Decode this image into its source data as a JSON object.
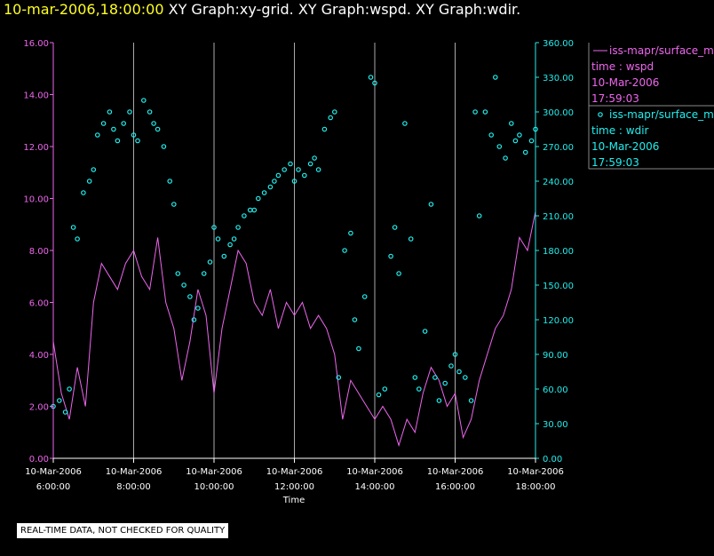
{
  "title": {
    "timestamp": "10-mar-2006,18:00:00",
    "graphs": "XY Graph:xy-grid.  XY Graph:wspd.  XY Graph:wdir."
  },
  "legend": {
    "wspd": {
      "label": "iss-mapr/surface_m",
      "time_label": "time : wspd",
      "date": "10-Mar-2006",
      "time": "17:59:03"
    },
    "wdir": {
      "label": "iss-mapr/surface_m",
      "time_label": "time : wdir",
      "date": "10-Mar-2006",
      "time": "17:59:03"
    }
  },
  "notice": "REAL-TIME DATA, NOT CHECKED FOR QUALITY",
  "colors": {
    "wspd": "#ee66ee",
    "wdir": "#22eeee",
    "grid": "#aaaaaa",
    "title_ts": "#ffff22"
  },
  "chart_data": {
    "type": "line",
    "xlabel": "Time",
    "xlim": [
      6.0,
      18.0
    ],
    "x_ticks": [
      {
        "x": 6,
        "date": "10-Mar-2006",
        "time": "6:00:00"
      },
      {
        "x": 8,
        "date": "10-Mar-2006",
        "time": "8:00:00"
      },
      {
        "x": 10,
        "date": "10-Mar-2006",
        "time": "10:00:00"
      },
      {
        "x": 12,
        "date": "10-Mar-2006",
        "time": "12:00:00"
      },
      {
        "x": 14,
        "date": "10-Mar-2006",
        "time": "14:00:00"
      },
      {
        "x": 16,
        "date": "10-Mar-2006",
        "time": "16:00:00"
      },
      {
        "x": 18,
        "date": "10-Mar-2006",
        "time": "18:00:00"
      }
    ],
    "y_left": {
      "lim": [
        0,
        16
      ],
      "ticks": [
        "0.00",
        "2.00",
        "4.00",
        "6.00",
        "8.00",
        "10.00",
        "12.00",
        "14.00",
        "16.00"
      ]
    },
    "y_right": {
      "lim": [
        0,
        360
      ],
      "ticks": [
        "0.00",
        "30.00",
        "60.00",
        "90.00",
        "120.00",
        "150.00",
        "180.00",
        "210.00",
        "240.00",
        "270.00",
        "300.00",
        "330.00",
        "360.00"
      ]
    },
    "series": [
      {
        "name": "wspd",
        "style": "line",
        "axis": "left",
        "x": [
          6.0,
          6.2,
          6.4,
          6.6,
          6.8,
          7.0,
          7.2,
          7.4,
          7.6,
          7.8,
          8.0,
          8.2,
          8.4,
          8.6,
          8.8,
          9.0,
          9.2,
          9.4,
          9.6,
          9.8,
          10.0,
          10.2,
          10.4,
          10.6,
          10.8,
          11.0,
          11.2,
          11.4,
          11.6,
          11.8,
          12.0,
          12.2,
          12.4,
          12.6,
          12.8,
          13.0,
          13.2,
          13.4,
          13.6,
          13.8,
          14.0,
          14.2,
          14.4,
          14.6,
          14.8,
          15.0,
          15.2,
          15.4,
          15.6,
          15.8,
          16.0,
          16.2,
          16.4,
          16.6,
          16.8,
          17.0,
          17.2,
          17.4,
          17.6,
          17.8,
          18.0
        ],
        "values": [
          4.5,
          2.5,
          1.5,
          3.5,
          2.0,
          6.0,
          7.5,
          7.0,
          6.5,
          7.5,
          8.0,
          7.0,
          6.5,
          8.5,
          6.0,
          5.0,
          3.0,
          4.5,
          6.5,
          5.5,
          2.5,
          5.0,
          6.5,
          8.0,
          7.5,
          6.0,
          5.5,
          6.5,
          5.0,
          6.0,
          5.5,
          6.0,
          5.0,
          5.5,
          5.0,
          4.0,
          1.5,
          3.0,
          2.5,
          2.0,
          1.5,
          2.0,
          1.5,
          0.5,
          1.5,
          1.0,
          2.5,
          3.5,
          3.0,
          2.0,
          2.5,
          0.8,
          1.5,
          3.0,
          4.0,
          5.0,
          5.5,
          6.5,
          8.5,
          8.0,
          9.5
        ]
      },
      {
        "name": "wdir",
        "style": "scatter",
        "axis": "right",
        "x": [
          6.0,
          6.15,
          6.3,
          6.4,
          6.5,
          6.6,
          6.75,
          6.9,
          7.0,
          7.1,
          7.25,
          7.4,
          7.5,
          7.6,
          7.75,
          7.9,
          8.0,
          8.1,
          8.25,
          8.4,
          8.5,
          8.6,
          8.75,
          8.9,
          9.0,
          9.1,
          9.25,
          9.4,
          9.5,
          9.6,
          9.75,
          9.9,
          10.0,
          10.1,
          10.25,
          10.4,
          10.5,
          10.6,
          10.75,
          10.9,
          11.0,
          11.1,
          11.25,
          11.4,
          11.5,
          11.6,
          11.75,
          11.9,
          12.0,
          12.1,
          12.25,
          12.4,
          12.5,
          12.6,
          12.75,
          12.9,
          13.0,
          13.1,
          13.25,
          13.4,
          13.5,
          13.6,
          13.75,
          13.9,
          14.0,
          14.1,
          14.25,
          14.4,
          14.5,
          14.6,
          14.75,
          14.9,
          15.0,
          15.1,
          15.25,
          15.4,
          15.5,
          15.6,
          15.75,
          15.9,
          16.0,
          16.1,
          16.25,
          16.4,
          16.5,
          16.6,
          16.75,
          16.9,
          17.0,
          17.1,
          17.25,
          17.4,
          17.5,
          17.6,
          17.75,
          17.9,
          18.0
        ],
        "values": [
          45,
          50,
          40,
          60,
          200,
          190,
          230,
          240,
          250,
          280,
          290,
          300,
          285,
          275,
          290,
          300,
          280,
          275,
          310,
          300,
          290,
          285,
          270,
          240,
          220,
          160,
          150,
          140,
          120,
          130,
          160,
          170,
          200,
          190,
          175,
          185,
          190,
          200,
          210,
          215,
          215,
          225,
          230,
          235,
          240,
          245,
          250,
          255,
          240,
          250,
          245,
          255,
          260,
          250,
          285,
          295,
          300,
          70,
          180,
          195,
          120,
          95,
          140,
          330,
          325,
          55,
          60,
          175,
          200,
          160,
          290,
          190,
          70,
          60,
          110,
          220,
          70,
          50,
          65,
          80,
          90,
          75,
          70,
          50,
          300,
          210,
          300,
          280,
          330,
          270,
          260,
          290,
          275,
          280,
          265,
          275,
          285
        ]
      }
    ]
  }
}
